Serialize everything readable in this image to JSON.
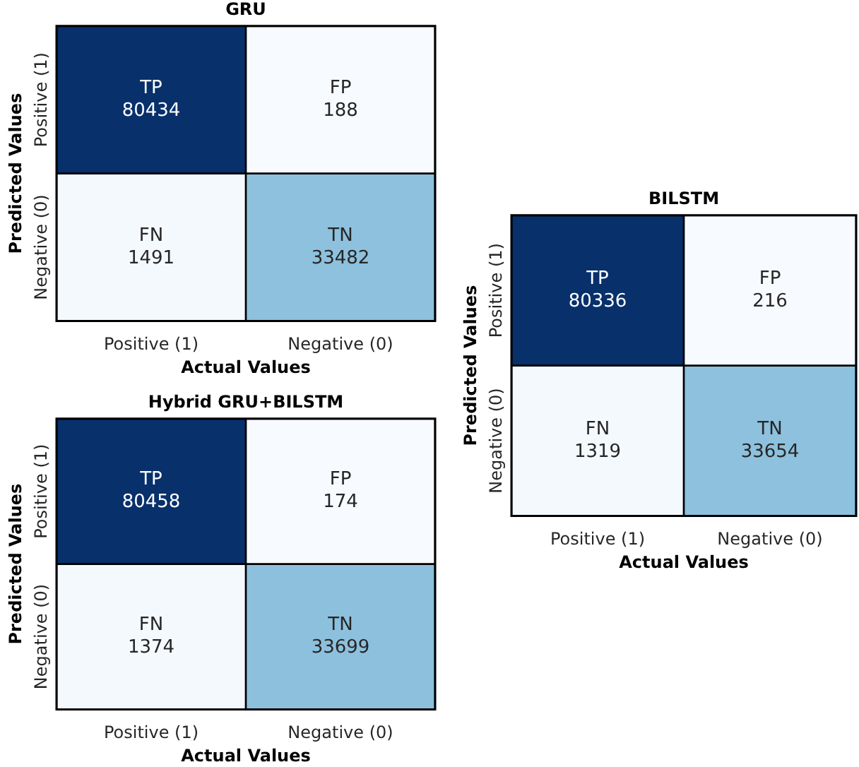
{
  "chart_data": [
    {
      "type": "heatmap",
      "title": "GRU",
      "xlabel": "Actual Values",
      "ylabel": "Predicted Values",
      "categories": [
        "Positive (1)",
        "Negative (0)"
      ],
      "y_categories": [
        "Positive (1)",
        "Negative (0)"
      ],
      "data_labels": true,
      "cells": [
        [
          80434,
          188
        ],
        [
          1491,
          33482
        ]
      ],
      "annotations": [
        "TP",
        "FP",
        "FN",
        "TN"
      ]
    },
    {
      "type": "heatmap",
      "title": "BILSTM",
      "xlabel": "Actual Values",
      "ylabel": "Predicted Values",
      "categories": [
        "Positive (1)",
        "Negative (0)"
      ],
      "y_categories": [
        "Positive (1)",
        "Negative (0)"
      ],
      "data_labels": true,
      "cells": [
        [
          80336,
          216
        ],
        [
          1319,
          33654
        ]
      ],
      "annotations": [
        "TP",
        "FP",
        "FN",
        "TN"
      ]
    },
    {
      "type": "heatmap",
      "title": "Hybrid GRU+BILSTM",
      "xlabel": "Actual Values",
      "ylabel": "Predicted Values",
      "categories": [
        "Positive (1)",
        "Negative (0)"
      ],
      "y_categories": [
        "Positive (1)",
        "Negative (0)"
      ],
      "data_labels": true,
      "cells": [
        [
          80458,
          174
        ],
        [
          1374,
          33699
        ]
      ],
      "annotations": [
        "TP",
        "FP",
        "FN",
        "TN"
      ]
    }
  ]
}
